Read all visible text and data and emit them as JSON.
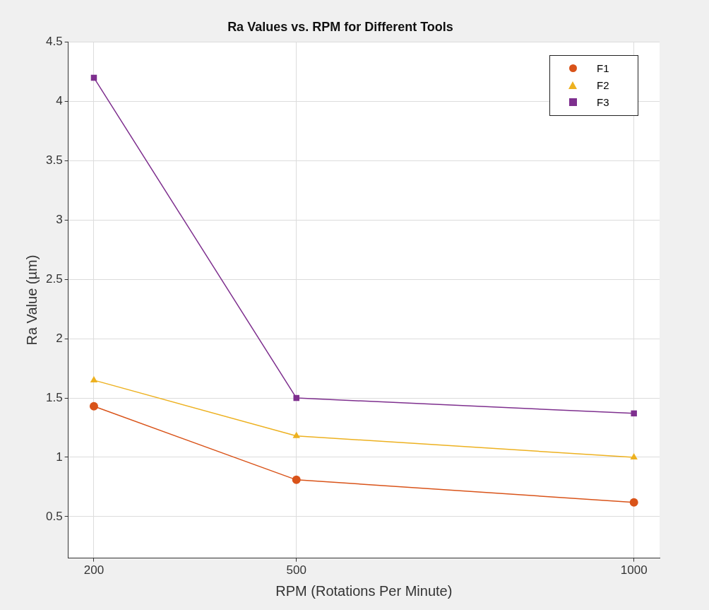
{
  "chart_data": {
    "type": "line",
    "title": "Ra Values vs. RPM for Different Tools",
    "xlabel": "RPM (Rotations Per Minute)",
    "ylabel": "Ra Value (µm)",
    "x": [
      200,
      500,
      1000
    ],
    "xlim": [
      162,
      1038
    ],
    "xticks": [
      200,
      500,
      1000
    ],
    "ylim": [
      0.15,
      4.5
    ],
    "yticks": [
      0.5,
      1,
      1.5,
      2,
      2.5,
      3,
      3.5,
      4,
      4.5
    ],
    "grid": true,
    "legend": "top right",
    "line_style": "solid",
    "series": [
      {
        "name": "F1",
        "color": "#d95319",
        "marker": "circle",
        "values": [
          1.43,
          0.81,
          0.62
        ]
      },
      {
        "name": "F2",
        "color": "#edb120",
        "marker": "triangle",
        "values": [
          1.65,
          1.18,
          1.0
        ]
      },
      {
        "name": "F3",
        "color": "#7e2f8e",
        "marker": "square",
        "values": [
          4.2,
          1.5,
          1.37
        ]
      }
    ]
  }
}
